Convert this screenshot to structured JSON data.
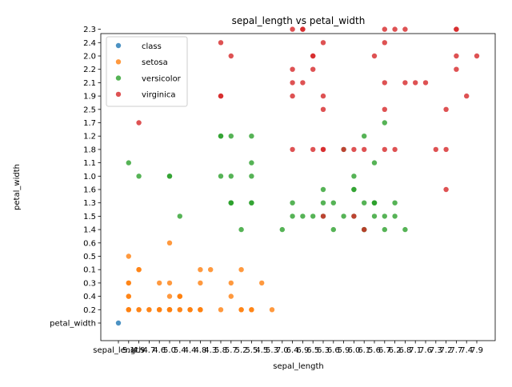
{
  "chart_data": {
    "type": "scatter",
    "title": "sepal_length vs petal_width",
    "xlabel": "sepal_length",
    "ylabel": "petal_width",
    "x_categories": [
      "sepal_length",
      "5.1",
      "4.9",
      "4.7",
      "4.6",
      "5.0",
      "5.4",
      "4.4",
      "4.8",
      "4.3",
      "5.8",
      "5.7",
      "5.2",
      "5.5",
      "4.5",
      "5.3",
      "7.0",
      "6.4",
      "6.9",
      "6.5",
      "6.3",
      "6.6",
      "5.9",
      "6.0",
      "6.1",
      "5.6",
      "6.7",
      "6.2",
      "6.8",
      "7.1",
      "7.6",
      "7.3",
      "7.2",
      "7.7",
      "7.4",
      "7.9"
    ],
    "y_categories": [
      "petal_width",
      "0.2",
      "0.4",
      "0.3",
      "0.1",
      "0.5",
      "0.6",
      "1.4",
      "1.5",
      "1.3",
      "1.6",
      "1.0",
      "1.1",
      "1.8",
      "1.2",
      "1.7",
      "2.5",
      "1.9",
      "2.1",
      "2.2",
      "2.0",
      "2.4",
      "2.3"
    ],
    "legend": {
      "position": "top-left"
    },
    "series": [
      {
        "name": "class",
        "color": "#1f77b4",
        "points": [
          [
            "sepal_length",
            "petal_width"
          ]
        ]
      },
      {
        "name": "setosa",
        "color": "#ff7f0e",
        "points": [
          [
            "5.1",
            "0.2"
          ],
          [
            "4.9",
            "0.2"
          ],
          [
            "4.7",
            "0.2"
          ],
          [
            "4.6",
            "0.2"
          ],
          [
            "5.0",
            "0.2"
          ],
          [
            "5.4",
            "0.4"
          ],
          [
            "4.6",
            "0.3"
          ],
          [
            "5.0",
            "0.2"
          ],
          [
            "4.4",
            "0.2"
          ],
          [
            "4.9",
            "0.1"
          ],
          [
            "5.4",
            "0.2"
          ],
          [
            "4.8",
            "0.2"
          ],
          [
            "4.8",
            "0.1"
          ],
          [
            "4.3",
            "0.1"
          ],
          [
            "5.8",
            "0.2"
          ],
          [
            "5.7",
            "0.4"
          ],
          [
            "5.4",
            "0.4"
          ],
          [
            "5.1",
            "0.3"
          ],
          [
            "5.7",
            "0.3"
          ],
          [
            "5.1",
            "0.3"
          ],
          [
            "5.4",
            "0.2"
          ],
          [
            "5.1",
            "0.4"
          ],
          [
            "4.6",
            "0.2"
          ],
          [
            "5.1",
            "0.5"
          ],
          [
            "4.8",
            "0.2"
          ],
          [
            "5.0",
            "0.2"
          ],
          [
            "5.0",
            "0.4"
          ],
          [
            "5.2",
            "0.2"
          ],
          [
            "5.2",
            "0.2"
          ],
          [
            "4.7",
            "0.2"
          ],
          [
            "4.8",
            "0.2"
          ],
          [
            "5.4",
            "0.4"
          ],
          [
            "5.2",
            "0.1"
          ],
          [
            "5.5",
            "0.2"
          ],
          [
            "4.9",
            "0.2"
          ],
          [
            "5.0",
            "0.2"
          ],
          [
            "5.5",
            "0.2"
          ],
          [
            "4.9",
            "0.1"
          ],
          [
            "4.4",
            "0.2"
          ],
          [
            "5.1",
            "0.2"
          ],
          [
            "5.0",
            "0.3"
          ],
          [
            "4.5",
            "0.3"
          ],
          [
            "4.4",
            "0.2"
          ],
          [
            "5.0",
            "0.6"
          ],
          [
            "5.1",
            "0.4"
          ],
          [
            "4.8",
            "0.3"
          ],
          [
            "5.1",
            "0.2"
          ],
          [
            "4.6",
            "0.2"
          ],
          [
            "5.3",
            "0.2"
          ],
          [
            "5.0",
            "0.2"
          ]
        ]
      },
      {
        "name": "versicolor",
        "color": "#2ca02c",
        "points": [
          [
            "7.0",
            "1.4"
          ],
          [
            "6.4",
            "1.5"
          ],
          [
            "6.9",
            "1.5"
          ],
          [
            "5.5",
            "1.3"
          ],
          [
            "6.5",
            "1.5"
          ],
          [
            "5.7",
            "1.3"
          ],
          [
            "6.3",
            "1.6"
          ],
          [
            "4.9",
            "1.0"
          ],
          [
            "6.6",
            "1.3"
          ],
          [
            "5.2",
            "1.4"
          ],
          [
            "5.0",
            "1.0"
          ],
          [
            "5.9",
            "1.5"
          ],
          [
            "6.0",
            "1.0"
          ],
          [
            "6.1",
            "1.4"
          ],
          [
            "5.6",
            "1.3"
          ],
          [
            "6.7",
            "1.4"
          ],
          [
            "5.6",
            "1.5"
          ],
          [
            "5.8",
            "1.0"
          ],
          [
            "6.2",
            "1.5"
          ],
          [
            "5.6",
            "1.1"
          ],
          [
            "5.9",
            "1.8"
          ],
          [
            "6.1",
            "1.3"
          ],
          [
            "6.3",
            "1.5"
          ],
          [
            "6.1",
            "1.2"
          ],
          [
            "6.4",
            "1.3"
          ],
          [
            "6.6",
            "1.4"
          ],
          [
            "6.8",
            "1.4"
          ],
          [
            "6.7",
            "1.7"
          ],
          [
            "6.0",
            "1.5"
          ],
          [
            "5.7",
            "1.0"
          ],
          [
            "5.5",
            "1.1"
          ],
          [
            "5.5",
            "1.0"
          ],
          [
            "5.8",
            "1.2"
          ],
          [
            "6.0",
            "1.6"
          ],
          [
            "5.4",
            "1.5"
          ],
          [
            "6.0",
            "1.6"
          ],
          [
            "6.7",
            "1.5"
          ],
          [
            "6.3",
            "1.3"
          ],
          [
            "5.6",
            "1.3"
          ],
          [
            "5.5",
            "1.3"
          ],
          [
            "5.5",
            "1.2"
          ],
          [
            "6.1",
            "1.4"
          ],
          [
            "5.8",
            "1.2"
          ],
          [
            "5.0",
            "1.0"
          ],
          [
            "5.6",
            "1.3"
          ],
          [
            "5.7",
            "1.2"
          ],
          [
            "5.7",
            "1.3"
          ],
          [
            "6.2",
            "1.3"
          ],
          [
            "5.1",
            "1.1"
          ],
          [
            "5.7",
            "1.3"
          ]
        ]
      },
      {
        "name": "virginica",
        "color": "#d62728",
        "points": [
          [
            "6.3",
            "2.5"
          ],
          [
            "5.8",
            "1.9"
          ],
          [
            "7.1",
            "2.1"
          ],
          [
            "6.3",
            "1.8"
          ],
          [
            "6.5",
            "2.2"
          ],
          [
            "7.6",
            "2.1"
          ],
          [
            "4.9",
            "1.7"
          ],
          [
            "7.3",
            "1.8"
          ],
          [
            "6.7",
            "1.8"
          ],
          [
            "7.2",
            "2.5"
          ],
          [
            "6.5",
            "2.0"
          ],
          [
            "6.4",
            "1.9"
          ],
          [
            "6.8",
            "2.1"
          ],
          [
            "5.7",
            "2.0"
          ],
          [
            "5.8",
            "2.4"
          ],
          [
            "6.4",
            "2.3"
          ],
          [
            "6.5",
            "1.8"
          ],
          [
            "7.7",
            "2.2"
          ],
          [
            "7.7",
            "2.3"
          ],
          [
            "6.0",
            "1.5"
          ],
          [
            "6.9",
            "2.3"
          ],
          [
            "5.6",
            "2.0"
          ],
          [
            "7.7",
            "2.0"
          ],
          [
            "6.3",
            "1.8"
          ],
          [
            "6.7",
            "2.1"
          ],
          [
            "7.2",
            "1.8"
          ],
          [
            "6.2",
            "1.8"
          ],
          [
            "6.1",
            "1.8"
          ],
          [
            "6.4",
            "2.1"
          ],
          [
            "7.2",
            "1.6"
          ],
          [
            "7.4",
            "1.9"
          ],
          [
            "7.9",
            "2.0"
          ],
          [
            "6.4",
            "2.2"
          ],
          [
            "6.3",
            "1.5"
          ],
          [
            "6.1",
            "1.4"
          ],
          [
            "7.7",
            "2.3"
          ],
          [
            "6.3",
            "2.4"
          ],
          [
            "6.4",
            "1.8"
          ],
          [
            "6.0",
            "1.8"
          ],
          [
            "6.9",
            "2.1"
          ],
          [
            "6.7",
            "2.4"
          ],
          [
            "6.9",
            "2.3"
          ],
          [
            "5.8",
            "1.9"
          ],
          [
            "6.8",
            "2.3"
          ],
          [
            "6.7",
            "2.5"
          ],
          [
            "6.7",
            "2.3"
          ],
          [
            "6.3",
            "1.9"
          ],
          [
            "6.5",
            "2.0"
          ],
          [
            "6.2",
            "2.3"
          ],
          [
            "5.9",
            "1.8"
          ]
        ]
      }
    ]
  }
}
